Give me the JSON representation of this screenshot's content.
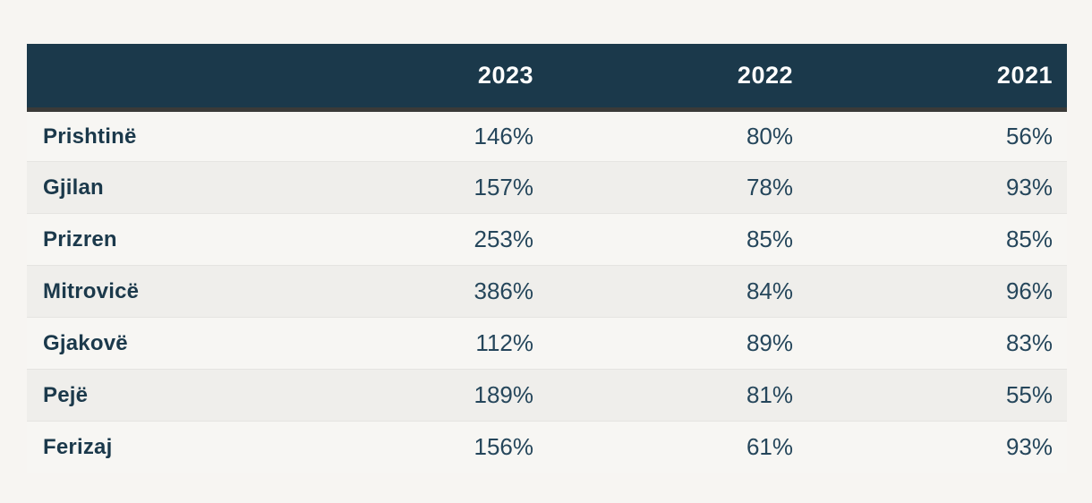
{
  "colors": {
    "page_bg": "#f7f5f2",
    "header_bg": "#1b394b",
    "header_border": "#3a3a38",
    "stripe_bg": "#efeeeb",
    "row_bg": "#f7f6f3",
    "city_text": "#1b394b",
    "value_text": "#25465b"
  },
  "table": {
    "columns": [
      "",
      "2023",
      "2022",
      "2021"
    ],
    "rows": [
      {
        "label": "Prishtinë",
        "values": [
          "146%",
          "80%",
          "56%"
        ]
      },
      {
        "label": "Gjilan",
        "values": [
          "157%",
          "78%",
          "93%"
        ]
      },
      {
        "label": "Prizren",
        "values": [
          "253%",
          "85%",
          "85%"
        ]
      },
      {
        "label": "Mitrovicë",
        "values": [
          "386%",
          "84%",
          "96%"
        ]
      },
      {
        "label": "Gjakovë",
        "values": [
          "112%",
          "89%",
          "83%"
        ]
      },
      {
        "label": "Pejë",
        "values": [
          "189%",
          "81%",
          "55%"
        ]
      },
      {
        "label": "Ferizaj",
        "values": [
          "156%",
          "61%",
          "93%"
        ]
      }
    ]
  },
  "chart_data": {
    "type": "table",
    "title": "",
    "categories": [
      "2023",
      "2022",
      "2021"
    ],
    "unit": "%",
    "series": [
      {
        "name": "Prishtinë",
        "values": [
          146,
          80,
          56
        ]
      },
      {
        "name": "Gjilan",
        "values": [
          157,
          78,
          93
        ]
      },
      {
        "name": "Prizren",
        "values": [
          253,
          85,
          85
        ]
      },
      {
        "name": "Mitrovicë",
        "values": [
          386,
          84,
          96
        ]
      },
      {
        "name": "Gjakovë",
        "values": [
          112,
          89,
          83
        ]
      },
      {
        "name": "Pejë",
        "values": [
          189,
          81,
          55
        ]
      },
      {
        "name": "Ferizaj",
        "values": [
          156,
          61,
          93
        ]
      }
    ]
  }
}
